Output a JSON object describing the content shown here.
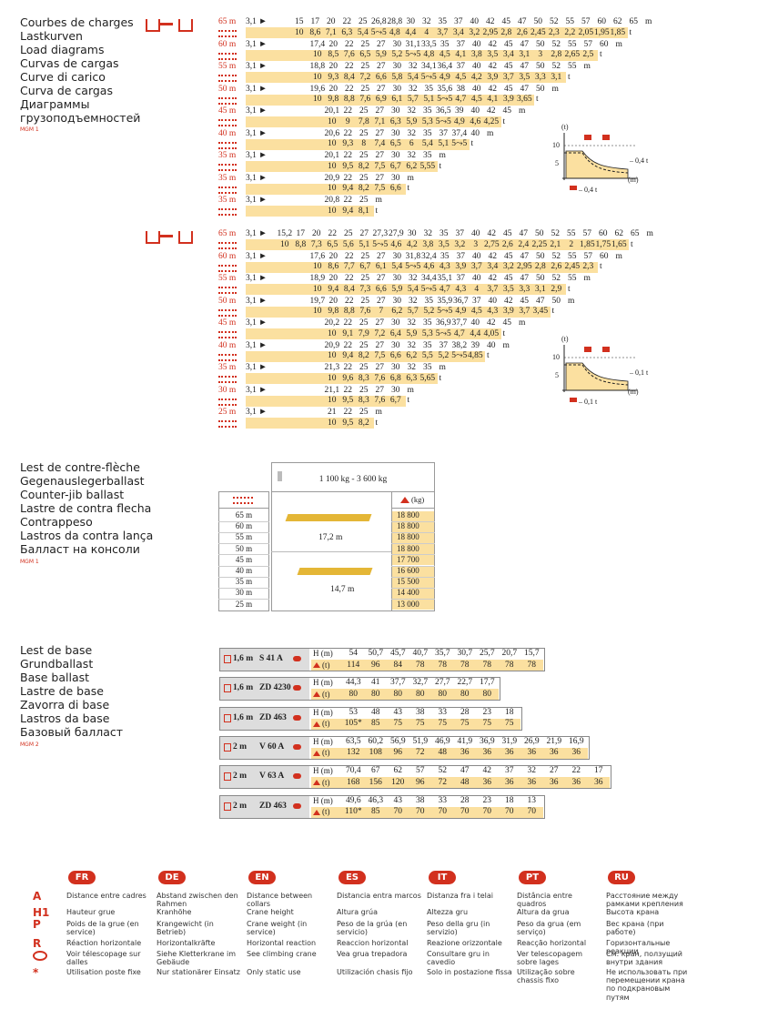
{
  "load_diagrams": {
    "titles": [
      "Courbes de charges",
      "Lastkurven",
      "Load diagrams",
      "Curvas de cargas",
      "Curve di carico",
      "Curva de cargas",
      "Диаграммы",
      "грузоподъемностей"
    ],
    "ref": "MGM 1",
    "units": {
      "m": "m",
      "t": "t"
    },
    "blocks": [
      {
        "graph": {
          "t": "(t)",
          "v10": "10",
          "v5": "5",
          "m": "(m)",
          "side": "– 0,4 t",
          "note": "– 0,4 t"
        },
        "rows": [
          {
            "boom": "65 m",
            "radius": "3,1 ►",
            "distances": [
              "15",
              "17",
              "20",
              "22",
              "25",
              "26,8",
              "28,8",
              "30",
              "32",
              "35",
              "37",
              "40",
              "42",
              "45",
              "47",
              "50",
              "52",
              "55",
              "57",
              "60",
              "62",
              "65"
            ],
            "loads": [
              "10",
              "8,6",
              "7,1",
              "6,3",
              "5,4",
              "5⤳5",
              "4,8",
              "4,4",
              "4",
              "3,7",
              "3,4",
              "3,2",
              "2,95",
              "2,8",
              "2,6",
              "2,45",
              "2,3",
              "2,2",
              "2,05",
              "1,95",
              "1,85"
            ]
          },
          {
            "boom": "60 m",
            "radius": "3,1 ►",
            "distances": [
              "17,4",
              "20",
              "22",
              "25",
              "27",
              "30",
              "31,1",
              "33,5",
              "35",
              "37",
              "40",
              "42",
              "45",
              "47",
              "50",
              "52",
              "55",
              "57",
              "60"
            ],
            "loads": [
              "10",
              "8,5",
              "7,6",
              "6,5",
              "5,9",
              "5,2",
              "5⤳5",
              "4,8",
              "4,5",
              "4,1",
              "3,8",
              "3,5",
              "3,4",
              "3,1",
              "3",
              "2,8",
              "2,65",
              "2,5"
            ]
          },
          {
            "boom": "55 m",
            "radius": "3,1 ►",
            "distances": [
              "18,8",
              "20",
              "22",
              "25",
              "27",
              "30",
              "32",
              "34,1",
              "36,4",
              "37",
              "40",
              "42",
              "45",
              "47",
              "50",
              "52",
              "55"
            ],
            "loads": [
              "10",
              "9,3",
              "8,4",
              "7,2",
              "6,6",
              "5,8",
              "5,4",
              "5⤳5",
              "4,9",
              "4,5",
              "4,2",
              "3,9",
              "3,7",
              "3,5",
              "3,3",
              "3,1"
            ]
          },
          {
            "boom": "50 m",
            "radius": "3,1 ►",
            "distances": [
              "19,6",
              "20",
              "22",
              "25",
              "27",
              "30",
              "32",
              "35",
              "35,6",
              "38",
              "40",
              "42",
              "45",
              "47",
              "50"
            ],
            "loads": [
              "10",
              "9,8",
              "8,8",
              "7,6",
              "6,9",
              "6,1",
              "5,7",
              "5,1",
              "5⤳5",
              "4,7",
              "4,5",
              "4,1",
              "3,9",
              "3,65"
            ]
          },
          {
            "boom": "45 m",
            "radius": "3,1 ►",
            "distances": [
              "20,1",
              "22",
              "25",
              "27",
              "30",
              "32",
              "35",
              "36,5",
              "39",
              "40",
              "42",
              "45"
            ],
            "loads": [
              "10",
              "9",
              "7,8",
              "7,1",
              "6,3",
              "5,9",
              "5,3",
              "5⤳5",
              "4,9",
              "4,6",
              "4,25"
            ]
          },
          {
            "boom": "40 m",
            "radius": "3,1 ►",
            "distances": [
              "20,6",
              "22",
              "25",
              "27",
              "30",
              "32",
              "35",
              "37",
              "37,4",
              "40"
            ],
            "loads": [
              "10",
              "9,3",
              "8",
              "7,4",
              "6,5",
              "6",
              "5,4",
              "5,1",
              "5⤳5"
            ]
          },
          {
            "boom": "35 m",
            "radius": "3,1 ►",
            "distances": [
              "20,1",
              "22",
              "25",
              "27",
              "30",
              "32",
              "35"
            ],
            "loads": [
              "10",
              "9,5",
              "8,2",
              "7,5",
              "6,7",
              "6,2",
              "5,55"
            ]
          },
          {
            "boom": "35 m",
            "radius": "3,1 ►",
            "distances": [
              "20,9",
              "22",
              "25",
              "27",
              "30"
            ],
            "loads": [
              "10",
              "9,4",
              "8,2",
              "7,5",
              "6,6"
            ]
          },
          {
            "boom": "35 m",
            "radius": "3,1 ►",
            "distances": [
              "20,8",
              "22",
              "25"
            ],
            "loads": [
              "10",
              "9,4",
              "8,1"
            ]
          }
        ]
      },
      {
        "graph": {
          "t": "(t)",
          "v10": "10",
          "v5": "5",
          "m": "(m)",
          "side": "– 0,1 t",
          "note": "– 0,1 t"
        },
        "rows": [
          {
            "boom": "65 m",
            "radius": "3,1 ►",
            "distances": [
              "15,2",
              "17",
              "20",
              "22",
              "25",
              "27",
              "27,3",
              "27,9",
              "30",
              "32",
              "35",
              "37",
              "40",
              "42",
              "45",
              "47",
              "50",
              "52",
              "55",
              "57",
              "60",
              "62",
              "65"
            ],
            "loads": [
              "10",
              "8,8",
              "7,3",
              "6,5",
              "5,6",
              "5,1",
              "5⤳5",
              "4,6",
              "4,2",
              "3,8",
              "3,5",
              "3,2",
              "3",
              "2,75",
              "2,6",
              "2,4",
              "2,25",
              "2,1",
              "2",
              "1,85",
              "1,75",
              "1,65"
            ]
          },
          {
            "boom": "60 m",
            "radius": "3,1 ►",
            "distances": [
              "17,6",
              "20",
              "22",
              "25",
              "27",
              "30",
              "31,8",
              "32,4",
              "35",
              "37",
              "40",
              "42",
              "45",
              "47",
              "50",
              "52",
              "55",
              "57",
              "60"
            ],
            "loads": [
              "10",
              "8,6",
              "7,7",
              "6,7",
              "6,1",
              "5,4",
              "5⤳5",
              "4,6",
              "4,3",
              "3,9",
              "3,7",
              "3,4",
              "3,2",
              "2,95",
              "2,8",
              "2,6",
              "2,45",
              "2,3"
            ]
          },
          {
            "boom": "55 m",
            "radius": "3,1 ►",
            "distances": [
              "18,9",
              "20",
              "22",
              "25",
              "27",
              "30",
              "32",
              "34,4",
              "35,1",
              "37",
              "40",
              "42",
              "45",
              "47",
              "50",
              "52",
              "55"
            ],
            "loads": [
              "10",
              "9,4",
              "8,4",
              "7,3",
              "6,6",
              "5,9",
              "5,4",
              "5⤳5",
              "4,7",
              "4,3",
              "4",
              "3,7",
              "3,5",
              "3,3",
              "3,1",
              "2,9"
            ]
          },
          {
            "boom": "50 m",
            "radius": "3,1 ►",
            "distances": [
              "19,7",
              "20",
              "22",
              "25",
              "27",
              "30",
              "32",
              "35",
              "35,9",
              "36,7",
              "37",
              "40",
              "42",
              "45",
              "47",
              "50"
            ],
            "loads": [
              "10",
              "9,8",
              "8,8",
              "7,6",
              "7",
              "6,2",
              "5,7",
              "5,2",
              "5⤳5",
              "4,9",
              "4,5",
              "4,3",
              "3,9",
              "3,7",
              "3,45"
            ]
          },
          {
            "boom": "45 m",
            "radius": "3,1 ►",
            "distances": [
              "20,2",
              "22",
              "25",
              "27",
              "30",
              "32",
              "35",
              "36,9",
              "37,7",
              "40",
              "42",
              "45"
            ],
            "loads": [
              "10",
              "9,1",
              "7,9",
              "7,2",
              "6,4",
              "5,9",
              "5,3",
              "5⤳5",
              "4,7",
              "4,4",
              "4,05"
            ]
          },
          {
            "boom": "40 m",
            "radius": "3,1 ►",
            "distances": [
              "20,9",
              "22",
              "25",
              "27",
              "30",
              "32",
              "35",
              "37",
              "38,2",
              "39",
              "40"
            ],
            "loads": [
              "10",
              "9,4",
              "8,2",
              "7,5",
              "6,6",
              "6,2",
              "5,5",
              "5,2",
              "5⤳5",
              "4,85"
            ]
          },
          {
            "boom": "35 m",
            "radius": "3,1 ►",
            "distances": [
              "21,3",
              "22",
              "25",
              "27",
              "30",
              "32",
              "35"
            ],
            "loads": [
              "10",
              "9,6",
              "8,3",
              "7,6",
              "6,8",
              "6,3",
              "5,65"
            ]
          },
          {
            "boom": "30 m",
            "radius": "3,1 ►",
            "distances": [
              "21,1",
              "22",
              "25",
              "27",
              "30"
            ],
            "loads": [
              "10",
              "9,5",
              "8,3",
              "7,6",
              "6,7"
            ]
          },
          {
            "boom": "25 m",
            "radius": "3,1 ►",
            "distances": [
              "21",
              "22",
              "25"
            ],
            "loads": [
              "10",
              "9,5",
              "8,2"
            ]
          }
        ]
      }
    ]
  },
  "counter_jib": {
    "titles": [
      "Lest de contre-flèche",
      "Gegenauslegerballast",
      "Counter-jib ballast",
      "Lastre de contra flecha",
      "Contrappeso",
      "Lastros da contra lança",
      "Балласт на консоли"
    ],
    "ref": "MGM 1",
    "range": "1 100 kg - 3 600 kg",
    "unit": "(kg)",
    "lengths": [
      "17,2 m",
      "14,7 m"
    ],
    "rows": [
      {
        "boom": "65 m",
        "kg": "18 800"
      },
      {
        "boom": "60 m",
        "kg": "18 800"
      },
      {
        "boom": "55 m",
        "kg": "18 800"
      },
      {
        "boom": "50 m",
        "kg": "18 800"
      },
      {
        "boom": "45 m",
        "kg": "17 700"
      },
      {
        "boom": "40 m",
        "kg": "16 600"
      },
      {
        "boom": "35 m",
        "kg": "15 500"
      },
      {
        "boom": "30 m",
        "kg": "14 400"
      },
      {
        "boom": "25 m",
        "kg": "13 000"
      }
    ]
  },
  "base_ballast": {
    "titles": [
      "Lest de base",
      "Grundballast",
      "Base ballast",
      "Lastre de base",
      "Zavorra di base",
      "Lastros da base",
      "Базовый балласт"
    ],
    "ref": "MGM 2",
    "h_label": "H (m)",
    "t_label": "(t)",
    "tables": [
      {
        "size": "1,6 m",
        "model": "S 41 A",
        "h": [
          "54",
          "50,7",
          "45,7",
          "40,7",
          "35,7",
          "30,7",
          "25,7",
          "20,7",
          "15,7"
        ],
        "t": [
          "114",
          "96",
          "84",
          "78",
          "78",
          "78",
          "78",
          "78",
          "78"
        ]
      },
      {
        "size": "1,6 m",
        "model": "ZD 4230",
        "h": [
          "44,3",
          "41",
          "37,7",
          "32,7",
          "27,7",
          "22,7",
          "17,7"
        ],
        "t": [
          "80",
          "80",
          "80",
          "80",
          "80",
          "80",
          "80"
        ]
      },
      {
        "size": "1,6 m",
        "model": "ZD 463",
        "h": [
          "53",
          "48",
          "43",
          "38",
          "33",
          "28",
          "23",
          "18"
        ],
        "t": [
          "105*",
          "85",
          "75",
          "75",
          "75",
          "75",
          "75",
          "75"
        ]
      },
      {
        "size": "2 m",
        "model": "V 60 A",
        "h": [
          "63,5",
          "60,2",
          "56,9",
          "51,9",
          "46,9",
          "41,9",
          "36,9",
          "31,9",
          "26,9",
          "21,9",
          "16,9"
        ],
        "t": [
          "132",
          "108",
          "96",
          "72",
          "48",
          "36",
          "36",
          "36",
          "36",
          "36",
          "36"
        ]
      },
      {
        "size": "2 m",
        "model": "V 63 A",
        "h": [
          "70,4",
          "67",
          "62",
          "57",
          "52",
          "47",
          "42",
          "37",
          "32",
          "27",
          "22",
          "17"
        ],
        "t": [
          "168",
          "156",
          "120",
          "96",
          "72",
          "48",
          "36",
          "36",
          "36",
          "36",
          "36",
          "36"
        ]
      },
      {
        "size": "2 m",
        "model": "ZD 463",
        "h": [
          "49,6",
          "46,3",
          "43",
          "38",
          "33",
          "28",
          "23",
          "18",
          "13"
        ],
        "t": [
          "110*",
          "85",
          "70",
          "70",
          "70",
          "70",
          "70",
          "70",
          "70"
        ]
      }
    ]
  },
  "legend": {
    "languages": [
      "FR",
      "DE",
      "EN",
      "ES",
      "IT",
      "PT",
      "RU"
    ],
    "rows": [
      {
        "symbol": "A",
        "texts": [
          "Distance entre cadres",
          "Abstand zwischen den Rahmen",
          "Distance between collars",
          "Distancia entra marcos",
          "Distanza fra i telai",
          "Distância entre quadros",
          "Расстояние между рамками крепления"
        ]
      },
      {
        "symbol": "H1",
        "texts": [
          "Hauteur grue",
          "Kranhöhe",
          "Crane height",
          "Altura grúa",
          "Altezza gru",
          "Altura da grua",
          "Высота крана"
        ]
      },
      {
        "symbol": "P",
        "texts": [
          "Poids de la grue (en service)",
          "Krangewicht (in Betrieb)",
          "Crane weight (in service)",
          "Peso de la grúa (en servicio)",
          "Peso della gru (in servizio)",
          "Peso da grua (em serviço)",
          "Вес крана (при работе)"
        ]
      },
      {
        "symbol": "R",
        "texts": [
          "Réaction horizontale",
          "Horizontalkräfte",
          "Horizontal reaction",
          "Reaccion horizontal",
          "Reazione orizzontale",
          "Reacção horizontal",
          "Горизонтальные реакции"
        ]
      },
      {
        "texts": [
          "Voir télescopage sur dalles",
          "Siehe Kletterkrane im Gebäude",
          "See climbing crane",
          "Vea grua trepadora",
          "Consultare gru in cavedio",
          "Ver telescopagem sobre lages",
          "См. кран, ползущий внутри здания"
        ]
      },
      {
        "symbol": "*",
        "texts": [
          "Utilisation poste fixe",
          "Nur stationärer Einsatz",
          "Only static use",
          "Utilización chasis fijo",
          "Solo in postazione fissa",
          "Utilização sobre chassis fixo",
          "Не использовать при перемещении крана по подкрановым путям"
        ]
      }
    ]
  }
}
